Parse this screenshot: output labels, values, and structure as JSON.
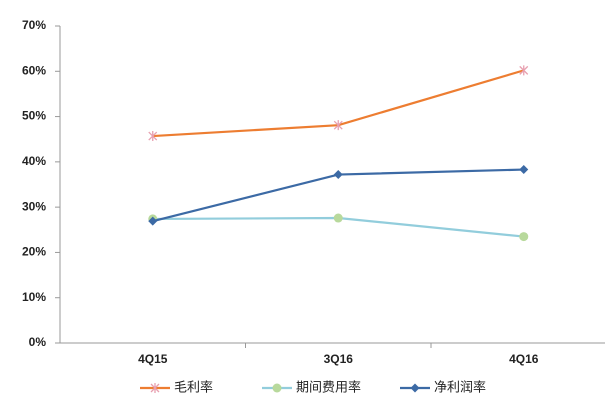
{
  "chart_data": {
    "type": "line",
    "categories": [
      "4Q15",
      "3Q16",
      "4Q16"
    ],
    "series": [
      {
        "name": "毛利率",
        "color": "#ed7d31",
        "marker": "asterisk",
        "marker_color": "#e8a0b0",
        "values": [
          45.7,
          48.1,
          60.2
        ]
      },
      {
        "name": "期间费用率",
        "color": "#92cddc",
        "marker": "circle",
        "marker_color": "#b8d99c",
        "values": [
          27.4,
          27.6,
          23.5
        ]
      },
      {
        "name": "净利润率",
        "color": "#3c6aa5",
        "marker": "diamond",
        "marker_color": "#3c6aa5",
        "values": [
          26.9,
          37.2,
          38.3
        ]
      }
    ],
    "ylim": [
      0,
      70
    ],
    "yticks": [
      {
        "value": 0,
        "label": "0%"
      },
      {
        "value": 10,
        "label": "10%"
      },
      {
        "value": 20,
        "label": "20%"
      },
      {
        "value": 30,
        "label": "30%"
      },
      {
        "value": 40,
        "label": "40%"
      },
      {
        "value": 50,
        "label": "50%"
      },
      {
        "value": 60,
        "label": "60%"
      },
      {
        "value": 70,
        "label": "70%"
      }
    ],
    "grid": false,
    "legend": "bottom"
  }
}
